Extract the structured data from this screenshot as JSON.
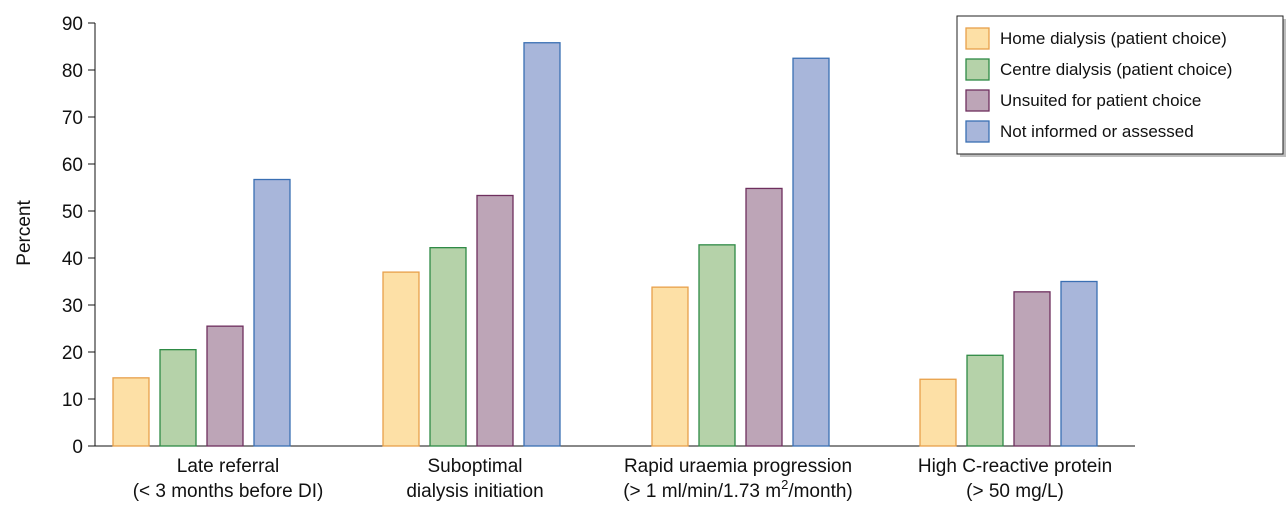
{
  "chart_data": {
    "type": "bar",
    "ylabel": "Percent",
    "ylim": [
      0,
      90
    ],
    "yticks": [
      "0",
      "10",
      "20",
      "30",
      "40",
      "50",
      "60",
      "70",
      "80",
      "90"
    ],
    "categories": [
      {
        "line1": "Late referral",
        "line2": "(< 3 months before DI)"
      },
      {
        "line1": "Suboptimal",
        "line2": "dialysis initiation"
      },
      {
        "line1": "Rapid uraemia progression",
        "line2a": "(> 1 ml/min/1.73 m",
        "sup": "2",
        "line2b": "/month)"
      },
      {
        "line1": "High C-reactive protein",
        "line2": "(> 50 mg/L)"
      }
    ],
    "series": [
      {
        "name": "Home dialysis (patient choice)",
        "fill": "#fde0a6",
        "stroke": "#e8a04a",
        "values": [
          14.5,
          37.0,
          33.8,
          14.2
        ]
      },
      {
        "name": "Centre dialysis (patient choice)",
        "fill": "#b5d2a9",
        "stroke": "#2e8a45",
        "values": [
          20.5,
          42.2,
          42.8,
          19.3
        ]
      },
      {
        "name": "Unsuited for patient choice",
        "fill": "#bda5b7",
        "stroke": "#6e2f5e",
        "values": [
          25.5,
          53.3,
          54.8,
          32.8
        ]
      },
      {
        "name": "Not informed or assessed",
        "fill": "#a8b6da",
        "stroke": "#3a6fb3",
        "values": [
          56.7,
          85.8,
          82.5,
          35.0
        ]
      }
    ],
    "legend_position": "top-right",
    "grid": false
  }
}
